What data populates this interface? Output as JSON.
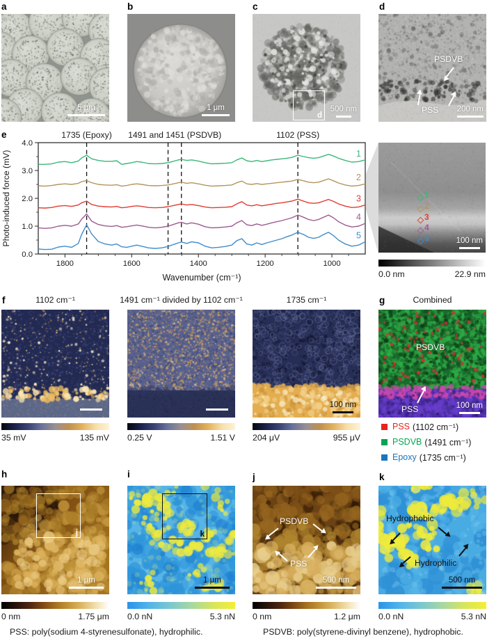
{
  "panels": {
    "a": {
      "letter": "a",
      "scalebar": "5 μm"
    },
    "b": {
      "letter": "b",
      "scalebar": "1 μm"
    },
    "c": {
      "letter": "c",
      "scalebar": "500 nm",
      "inset": "d"
    },
    "d": {
      "letter": "d",
      "scalebar": "200 nm",
      "label_psdvb": "PSDVB",
      "label_pss": "PSS"
    },
    "e": {
      "letter": "e",
      "afm": {
        "scalebar": "100 nm",
        "points": [
          "1",
          "2",
          "3",
          "4",
          "5"
        ],
        "colorbar_min": "0.0 nm",
        "colorbar_max": "22.9 nm"
      }
    },
    "f": {
      "letter": "f",
      "images": [
        {
          "title": "1102 cm⁻¹",
          "min": "35 mV",
          "max": "135 mV"
        },
        {
          "title": "1491 cm⁻¹ divided by 1102 cm⁻¹",
          "min": "0.25 V",
          "max": "1.51 V"
        },
        {
          "title": "1735 cm⁻¹",
          "min": "204 μV",
          "max": "955 μV",
          "scalebar": "100 nm"
        }
      ]
    },
    "g": {
      "letter": "g",
      "title": "Combined",
      "label_psdvb": "PSDVB",
      "label_pss": "PSS",
      "scalebar": "100 nm",
      "legend": [
        {
          "name": "PSS",
          "detail": "(1102 cm⁻¹)",
          "color": "#e8231e"
        },
        {
          "name": "PSDVB",
          "detail": "(1491 cm⁻¹)",
          "color": "#00a651"
        },
        {
          "name": "Epoxy",
          "detail": "(1735 cm⁻¹)",
          "color": "#1b75bc"
        }
      ]
    },
    "h": {
      "letter": "h",
      "scalebar": "1 μm",
      "inset": "j",
      "colorbar_min": "0 nm",
      "colorbar_max": "1.75 μm"
    },
    "i": {
      "letter": "i",
      "scalebar": "1 μm",
      "inset": "k",
      "colorbar_min": "0.0 nN",
      "colorbar_max": "5.3 nN"
    },
    "j": {
      "letter": "j",
      "scalebar": "500 nm",
      "label_psdvb": "PSDVB",
      "label_pss": "PSS",
      "colorbar_min": "0 nm",
      "colorbar_max": "1.2 μm"
    },
    "k": {
      "letter": "k",
      "scalebar": "500 nm",
      "label_hydrophobic": "Hydrophobic",
      "label_hydrophilic": "Hydrophilic",
      "colorbar_min": "0.0 nN",
      "colorbar_max": "5.3 nN"
    }
  },
  "footer": {
    "pss": "PSS: poly(sodium 4-styrenesulfonate), hydrophilic.",
    "psdvb": "PSDVB: poly(styrene-divinyl benzene), hydrophobic."
  },
  "chart_data": {
    "type": "line",
    "xlabel": "Wavenumber (cm⁻¹)",
    "ylabel": "Photo-induced force (mV)",
    "xlim": [
      1880,
      900
    ],
    "ylim": [
      0.0,
      4.0
    ],
    "x_ticks": [
      1800,
      1600,
      1400,
      1200,
      1000
    ],
    "y_ticks": [
      0.0,
      1.0,
      2.0,
      3.0,
      4.0
    ],
    "dashed_lines": [
      1735,
      1491,
      1451,
      1102
    ],
    "peak_labels": [
      {
        "text": "1735 (Epoxy)",
        "x": 1735
      },
      {
        "text": "1491 and 1451 (PSDVB)",
        "x": 1471
      },
      {
        "text": "1102 (PSS)",
        "x": 1102
      }
    ],
    "x": [
      1880,
      1860,
      1840,
      1820,
      1800,
      1780,
      1760,
      1750,
      1735,
      1720,
      1700,
      1680,
      1660,
      1645,
      1630,
      1615,
      1600,
      1585,
      1570,
      1550,
      1530,
      1510,
      1491,
      1475,
      1460,
      1451,
      1435,
      1420,
      1400,
      1380,
      1360,
      1340,
      1320,
      1300,
      1285,
      1270,
      1255,
      1240,
      1225,
      1210,
      1195,
      1180,
      1165,
      1150,
      1135,
      1120,
      1102,
      1085,
      1070,
      1055,
      1040,
      1025,
      1010,
      995,
      980,
      960,
      940,
      920,
      900
    ],
    "series": [
      {
        "name": "1",
        "color": "#3bb878",
        "values": [
          3.22,
          3.22,
          3.24,
          3.3,
          3.32,
          3.28,
          3.34,
          3.45,
          3.55,
          3.42,
          3.36,
          3.33,
          3.33,
          3.35,
          3.22,
          3.25,
          3.28,
          3.32,
          3.3,
          3.25,
          3.24,
          3.25,
          3.28,
          3.33,
          3.38,
          3.4,
          3.36,
          3.38,
          3.34,
          3.28,
          3.24,
          3.25,
          3.26,
          3.28,
          3.38,
          3.45,
          3.35,
          3.32,
          3.36,
          3.32,
          3.35,
          3.38,
          3.4,
          3.42,
          3.44,
          3.47,
          3.55,
          3.5,
          3.46,
          3.44,
          3.46,
          3.52,
          3.58,
          3.52,
          3.44,
          3.36,
          3.3,
          3.32,
          3.38
        ]
      },
      {
        "name": "2",
        "color": "#b3955c",
        "values": [
          2.45,
          2.44,
          2.46,
          2.5,
          2.52,
          2.5,
          2.54,
          2.6,
          2.64,
          2.56,
          2.5,
          2.48,
          2.47,
          2.49,
          2.44,
          2.46,
          2.5,
          2.52,
          2.5,
          2.46,
          2.45,
          2.46,
          2.48,
          2.52,
          2.56,
          2.58,
          2.54,
          2.56,
          2.52,
          2.47,
          2.44,
          2.45,
          2.46,
          2.48,
          2.56,
          2.62,
          2.52,
          2.5,
          2.53,
          2.5,
          2.52,
          2.54,
          2.56,
          2.58,
          2.6,
          2.62,
          2.68,
          2.63,
          2.58,
          2.56,
          2.58,
          2.64,
          2.7,
          2.63,
          2.55,
          2.48,
          2.44,
          2.46,
          2.52
        ]
      },
      {
        "name": "3",
        "color": "#e03c31",
        "values": [
          1.66,
          1.65,
          1.67,
          1.72,
          1.74,
          1.71,
          1.76,
          1.84,
          1.9,
          1.78,
          1.72,
          1.7,
          1.69,
          1.71,
          1.66,
          1.68,
          1.71,
          1.73,
          1.71,
          1.67,
          1.66,
          1.67,
          1.7,
          1.74,
          1.78,
          1.8,
          1.76,
          1.78,
          1.74,
          1.69,
          1.66,
          1.67,
          1.68,
          1.7,
          1.8,
          1.88,
          1.76,
          1.73,
          1.77,
          1.73,
          1.76,
          1.79,
          1.82,
          1.84,
          1.87,
          1.9,
          1.97,
          1.9,
          1.84,
          1.82,
          1.84,
          1.9,
          1.96,
          1.89,
          1.8,
          1.72,
          1.67,
          1.69,
          1.76
        ]
      },
      {
        "name": "4",
        "color": "#9d5b8f",
        "values": [
          0.94,
          0.92,
          0.94,
          1.0,
          1.03,
          1.0,
          1.08,
          1.25,
          1.44,
          1.18,
          1.06,
          1.01,
          0.99,
          1.02,
          0.96,
          0.98,
          1.01,
          1.04,
          1.01,
          0.96,
          0.94,
          0.96,
          1.0,
          1.06,
          1.12,
          1.14,
          1.08,
          1.12,
          1.07,
          0.98,
          0.94,
          0.95,
          0.97,
          1.0,
          1.12,
          1.2,
          1.05,
          1.02,
          1.08,
          1.03,
          1.07,
          1.12,
          1.16,
          1.2,
          1.25,
          1.3,
          1.4,
          1.32,
          1.24,
          1.2,
          1.24,
          1.32,
          1.4,
          1.3,
          1.16,
          1.04,
          0.97,
          1.0,
          1.1
        ]
      },
      {
        "name": "5",
        "color": "#3f8ccc",
        "values": [
          0.18,
          0.16,
          0.17,
          0.25,
          0.28,
          0.24,
          0.38,
          0.7,
          1.05,
          0.72,
          0.45,
          0.36,
          0.32,
          0.36,
          0.26,
          0.24,
          0.28,
          0.32,
          0.28,
          0.22,
          0.2,
          0.22,
          0.27,
          0.34,
          0.4,
          0.43,
          0.38,
          0.44,
          0.4,
          0.28,
          0.22,
          0.24,
          0.27,
          0.32,
          0.48,
          0.55,
          0.36,
          0.32,
          0.4,
          0.34,
          0.4,
          0.45,
          0.5,
          0.55,
          0.62,
          0.68,
          0.78,
          0.7,
          0.6,
          0.56,
          0.6,
          0.7,
          0.78,
          0.66,
          0.5,
          0.36,
          0.28,
          0.32,
          0.44
        ]
      }
    ]
  }
}
